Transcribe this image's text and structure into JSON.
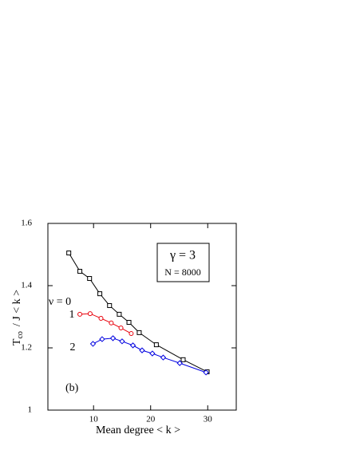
{
  "chart_data": {
    "type": "line",
    "xlabel": "Mean  degree   < k >",
    "ylabel_parts": [
      "T",
      "co",
      "/  J < k >"
    ],
    "xlim": [
      2,
      35
    ],
    "xticks": [
      10,
      20,
      30
    ],
    "ylim": [
      1,
      1.6
    ],
    "yticks": [
      1,
      1.2,
      1.4,
      1.6
    ],
    "series": [
      {
        "name": "ν = 0",
        "color": "#000000",
        "marker": "square",
        "x": [
          5.66,
          7.6,
          9.3,
          11.1,
          12.8,
          14.5,
          16.2,
          18.0,
          21.0,
          25.7,
          29.9
        ],
        "values": [
          1.505,
          1.446,
          1.423,
          1.374,
          1.336,
          1.308,
          1.282,
          1.249,
          1.21,
          1.162,
          1.123
        ]
      },
      {
        "name": "1",
        "color": "#e8000b",
        "marker": "circle",
        "x": [
          7.6,
          9.4,
          11.3,
          13.1,
          14.8,
          16.6
        ],
        "values": [
          1.308,
          1.31,
          1.295,
          1.28,
          1.264,
          1.246
        ]
      },
      {
        "name": "2",
        "color": "#0000e0",
        "marker": "diamond",
        "x": [
          9.9,
          11.5,
          13.4,
          15.0,
          16.9,
          18.5,
          20.3,
          22.2,
          25.1,
          29.7
        ],
        "values": [
          1.213,
          1.228,
          1.231,
          1.221,
          1.208,
          1.192,
          1.182,
          1.169,
          1.151,
          1.121
        ]
      }
    ],
    "annotations": {
      "panel": "(b)",
      "gamma": "γ = 3",
      "size": "N = 8000"
    }
  }
}
